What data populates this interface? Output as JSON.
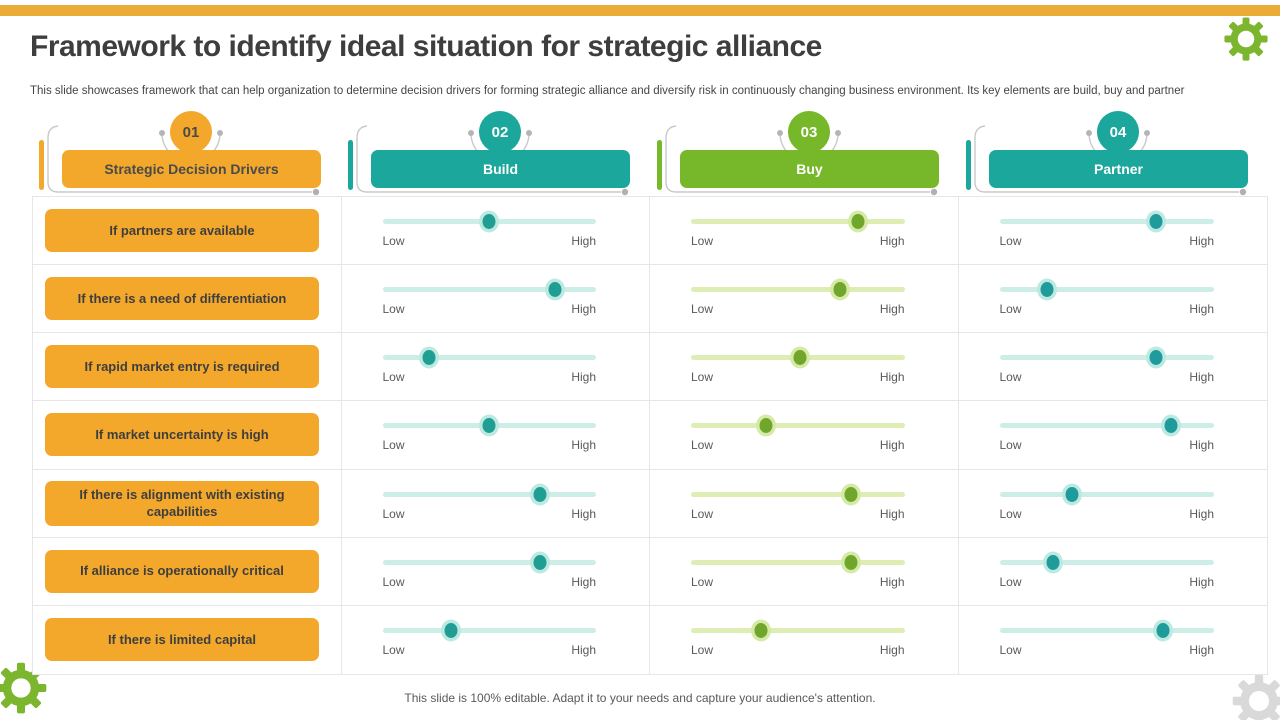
{
  "slide": {
    "title": "Framework to identify ideal situation for strategic alliance",
    "subtitle": "This slide showcases framework that can help organization to determine decision drivers for forming strategic alliance and diversify risk in continuously changing business environment. Its key elements are build, buy and partner",
    "footer": "This slide is 100% editable. Adapt it to your needs and capture your audience's attention."
  },
  "colors": {
    "topbar": "#EAAB37",
    "title_text": "#3E3E3E",
    "body_text": "#454545",
    "muted_text": "#595959",
    "grid_line": "#E6E6E6",
    "bracket_gray": "#C9C9C9",
    "row_pill": "#F3A82C",
    "row_pill_text": "#3E3E3E"
  },
  "icons": {
    "top_right_gear": {
      "name": "gear-icon",
      "color": "#7CB52E"
    },
    "bottom_left_gear": {
      "name": "gear-icon",
      "color": "#7CB52E"
    },
    "bottom_right_gear": {
      "name": "gear-icon",
      "color": "#D9D9D9"
    }
  },
  "columns": [
    {
      "number": "01",
      "label": "Strategic Decision Drivers",
      "color": "#F3A82C",
      "number_text": "#4A4A4A",
      "label_text": "#4A4A4A"
    },
    {
      "number": "02",
      "label": "Build",
      "color": "#1BA79B",
      "number_text": "#FFFFFF",
      "label_text": "#FFFFFF"
    },
    {
      "number": "03",
      "label": "Buy",
      "color": "#76B82A",
      "number_text": "#FFFFFF",
      "label_text": "#FFFFFF"
    },
    {
      "number": "04",
      "label": "Partner",
      "color": "#1BA79B",
      "number_text": "#FFFFFF",
      "label_text": "#FFFFFF"
    }
  ],
  "slider_labels": {
    "low": "Low",
    "high": "High"
  },
  "slider_styles": {
    "build": {
      "track": "#CDEDE7",
      "dot": "#219E93",
      "halo": "#BCE9E2"
    },
    "buy": {
      "track": "#DDEDB4",
      "dot": "#6FA62B",
      "halo": "#D5EAA6"
    },
    "partner": {
      "track": "#CDEDE7",
      "dot": "#1F9B9C",
      "halo": "#BCE9E2"
    }
  },
  "rows": [
    {
      "label": "If partners are available",
      "build": 50,
      "buy": 78,
      "partner": 73
    },
    {
      "label": "If there is a need of differentiation",
      "build": 81,
      "buy": 70,
      "partner": 22
    },
    {
      "label": "If rapid market entry is required",
      "build": 22,
      "buy": 51,
      "partner": 73
    },
    {
      "label": "If market uncertainty is high",
      "build": 50,
      "buy": 35,
      "partner": 80
    },
    {
      "label": "If there is alignment with existing capabilities",
      "build": 74,
      "buy": 75,
      "partner": 34
    },
    {
      "label": "If alliance is operationally critical",
      "build": 74,
      "buy": 75,
      "partner": 25
    },
    {
      "label": "If there is limited capital",
      "build": 32,
      "buy": 33,
      "partner": 76
    }
  ]
}
